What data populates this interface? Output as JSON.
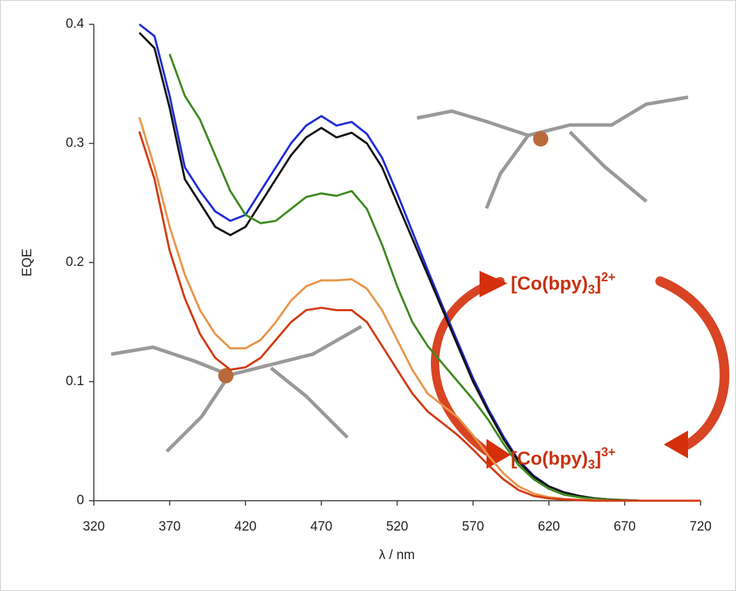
{
  "chart_data": {
    "type": "line",
    "x_label": "λ / nm",
    "y_label": "EQE",
    "x": [
      350,
      360,
      370,
      380,
      390,
      400,
      410,
      420,
      430,
      440,
      450,
      460,
      470,
      480,
      490,
      500,
      510,
      520,
      530,
      540,
      550,
      560,
      570,
      580,
      590,
      600,
      610,
      620,
      630,
      640,
      650,
      660,
      670,
      680,
      690,
      700,
      710,
      720
    ],
    "series": [
      {
        "color": "#1f2bd6",
        "values": [
          0.4,
          0.39,
          0.34,
          0.28,
          0.26,
          0.243,
          0.235,
          0.24,
          0.26,
          0.28,
          0.3,
          0.315,
          0.323,
          0.315,
          0.318,
          0.308,
          0.288,
          0.258,
          0.226,
          0.194,
          0.163,
          0.133,
          0.103,
          0.077,
          0.054,
          0.034,
          0.021,
          0.012,
          0.007,
          0.004,
          0.002,
          0.001,
          0.0005,
          0,
          0,
          0,
          0,
          0
        ]
      },
      {
        "color": "#111111",
        "values": [
          0.393,
          0.38,
          0.33,
          0.27,
          0.25,
          0.23,
          0.223,
          0.23,
          0.25,
          0.27,
          0.29,
          0.305,
          0.313,
          0.305,
          0.309,
          0.3,
          0.28,
          0.25,
          0.22,
          0.19,
          0.16,
          0.13,
          0.1,
          0.075,
          0.052,
          0.033,
          0.02,
          0.012,
          0.007,
          0.004,
          0.002,
          0.001,
          0.0005,
          0,
          0,
          0,
          0,
          0
        ]
      },
      {
        "color": "#3e8a1e",
        "values": [
          null,
          null,
          0.375,
          0.34,
          0.32,
          0.29,
          0.26,
          0.24,
          0.233,
          0.235,
          0.245,
          0.255,
          0.258,
          0.256,
          0.26,
          0.245,
          0.215,
          0.18,
          0.15,
          0.13,
          0.115,
          0.1,
          0.085,
          0.068,
          0.048,
          0.03,
          0.018,
          0.01,
          0.005,
          0.003,
          0.0015,
          0.0008,
          0.0004,
          0,
          0,
          0,
          0,
          0
        ]
      },
      {
        "color": "#e8954a",
        "values": [
          0.322,
          0.28,
          0.23,
          0.19,
          0.16,
          0.14,
          0.128,
          0.128,
          0.135,
          0.15,
          0.168,
          0.18,
          0.185,
          0.185,
          0.186,
          0.178,
          0.16,
          0.135,
          0.11,
          0.09,
          0.08,
          0.07,
          0.055,
          0.038,
          0.023,
          0.012,
          0.006,
          0.003,
          0.0015,
          0.0008,
          0.0004,
          0,
          0,
          0,
          0,
          0,
          0,
          0
        ]
      },
      {
        "color": "#d23a12",
        "values": [
          0.31,
          0.27,
          0.21,
          0.17,
          0.14,
          0.12,
          0.11,
          0.112,
          0.12,
          0.135,
          0.15,
          0.16,
          0.162,
          0.16,
          0.16,
          0.15,
          0.13,
          0.11,
          0.09,
          0.075,
          0.065,
          0.055,
          0.043,
          0.03,
          0.018,
          0.009,
          0.004,
          0.002,
          0.001,
          0.0005,
          0,
          0,
          0,
          0,
          0,
          0,
          0,
          0
        ]
      }
    ],
    "xlim": [
      320,
      720
    ],
    "xticks": [
      320,
      370,
      420,
      470,
      520,
      570,
      620,
      670,
      720
    ],
    "ylim": [
      0,
      0.4
    ],
    "yticks": [
      {
        "value": 0,
        "label": "0"
      },
      0.1,
      0.2,
      0.3,
      0.4
    ],
    "annotations": [
      [
        "[Co(bpy)",
        "3",
        "]",
        "2+"
      ],
      [
        "[Co(bpy)",
        "3",
        "]",
        "3+"
      ]
    ]
  }
}
